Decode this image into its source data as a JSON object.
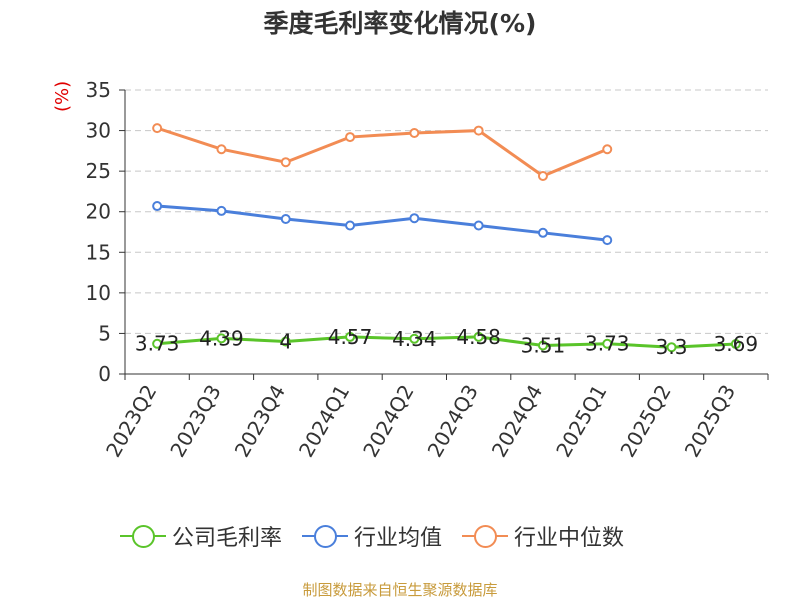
{
  "title": "季度毛利率变化情况(%)",
  "source": "制图数据来自恒生聚源数据库",
  "chart_data": {
    "type": "line",
    "title": "季度毛利率变化情况(%)",
    "ylabel": "(%)",
    "ylim": [
      0,
      35
    ],
    "yticks": [
      0,
      5,
      10,
      15,
      20,
      25,
      30,
      35
    ],
    "grid": true,
    "legend_position": "bottom",
    "categories": [
      "2023Q2",
      "2023Q3",
      "2023Q4",
      "2024Q1",
      "2024Q2",
      "2024Q3",
      "2024Q4",
      "2025Q1",
      "2025Q2",
      "2025Q3"
    ],
    "series": [
      {
        "name": "公司毛利率",
        "color": "#5ac42a",
        "values": [
          3.73,
          4.39,
          4,
          4.57,
          4.34,
          4.58,
          3.51,
          3.73,
          3.3,
          3.69
        ],
        "labels": [
          "3.73",
          "4.39",
          "4",
          "4.57",
          "4.34",
          "4.58",
          "3.51",
          "3.73",
          "3.3",
          "3.69"
        ]
      },
      {
        "name": "行业均值",
        "color": "#4a7fdb",
        "values": [
          20.7,
          20.1,
          19.1,
          18.3,
          19.2,
          18.3,
          17.4,
          16.5,
          null,
          null
        ]
      },
      {
        "name": "行业中位数",
        "color": "#f28c54",
        "values": [
          30.3,
          27.7,
          26.1,
          29.2,
          29.7,
          30.0,
          24.4,
          27.7,
          null,
          null
        ]
      }
    ]
  }
}
